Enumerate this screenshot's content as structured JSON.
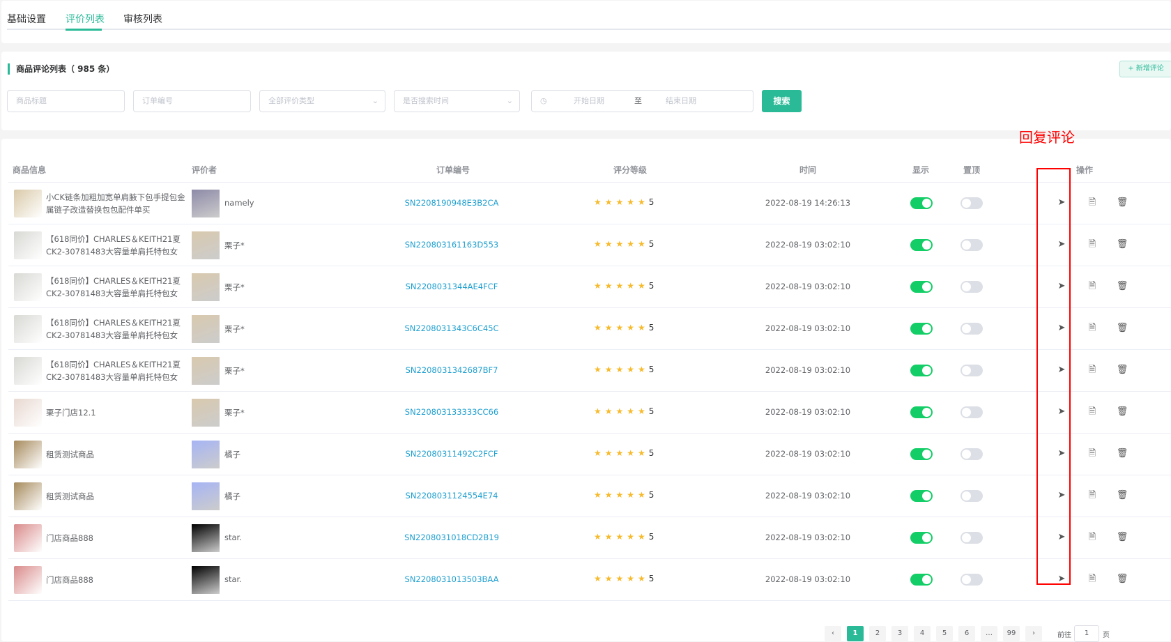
{
  "tabs": [
    "基础设置",
    "评价列表",
    "审核列表"
  ],
  "active_tab": 1,
  "list_title": "商品评论列表（ 985 条）",
  "add_button": "+ 新增评论",
  "filters": {
    "product_title_placeholder": "商品标题",
    "order_no_placeholder": "订单编号",
    "review_type": "全部评价类型",
    "search_time": "是否搜索时间",
    "start_date": "开始日期",
    "date_sep": "至",
    "end_date": "结束日期",
    "search_button": "搜索"
  },
  "annotation": "回复评论",
  "columns": [
    "商品信息",
    "评价者",
    "订单编号",
    "评分等级",
    "时间",
    "显示",
    "置顶",
    "操作"
  ],
  "rows": [
    {
      "product": "小CK链条加粗加宽单肩腋下包手提包金属链子改造替换包包配件单买",
      "reviewer": "namely",
      "order": "SN2208190948E3B2CA",
      "rating": 5,
      "time": "2022-08-19 14:26:13",
      "show": true,
      "top": false,
      "img": "#d9c9a8",
      "av": "#8d8aa8"
    },
    {
      "product": "【618同价】CHARLES＆KEITH21夏CK2-30781483大容量单肩托特包女",
      "reviewer": "栗子*",
      "order": "SN220803161163D553",
      "rating": 5,
      "time": "2022-08-19 03:02:10",
      "show": true,
      "top": false,
      "img": "#d8d8d4",
      "av": "#d9c9ae"
    },
    {
      "product": "【618同价】CHARLES＆KEITH21夏CK2-30781483大容量单肩托特包女",
      "reviewer": "栗子*",
      "order": "SN2208031344AE4FCF",
      "rating": 5,
      "time": "2022-08-19 03:02:10",
      "show": true,
      "top": false,
      "img": "#d8d8d4",
      "av": "#d9c9ae"
    },
    {
      "product": "【618同价】CHARLES＆KEITH21夏CK2-30781483大容量单肩托特包女",
      "reviewer": "栗子*",
      "order": "SN2208031343C6C45C",
      "rating": 5,
      "time": "2022-08-19 03:02:10",
      "show": true,
      "top": false,
      "img": "#d8d8d4",
      "av": "#d9c9ae"
    },
    {
      "product": "【618同价】CHARLES＆KEITH21夏CK2-30781483大容量单肩托特包女",
      "reviewer": "栗子*",
      "order": "SN2208031342687BF7",
      "rating": 5,
      "time": "2022-08-19 03:02:10",
      "show": true,
      "top": false,
      "img": "#d8d8d4",
      "av": "#d9c9ae"
    },
    {
      "product": "栗子门店12.1",
      "reviewer": "栗子*",
      "order": "SN220803133333CC66",
      "rating": 5,
      "time": "2022-08-19 03:02:10",
      "show": true,
      "top": false,
      "img": "#e8d8d0",
      "av": "#d9c9ae"
    },
    {
      "product": "租赁测试商品",
      "reviewer": "橘子",
      "order": "SN22080311492C2FCF",
      "rating": 5,
      "time": "2022-08-19 03:02:10",
      "show": true,
      "top": false,
      "img": "#a68a5c",
      "av": "#a6b4f5"
    },
    {
      "product": "租赁测试商品",
      "reviewer": "橘子",
      "order": "SN2208031124554E74",
      "rating": 5,
      "time": "2022-08-19 03:02:10",
      "show": true,
      "top": false,
      "img": "#a68a5c",
      "av": "#a6b4f5"
    },
    {
      "product": "门店商品888",
      "reviewer": "star.",
      "order": "SN2208031018CD2B19",
      "rating": 5,
      "time": "2022-08-19 03:02:10",
      "show": true,
      "top": false,
      "img": "#d98a8a",
      "av": "#000000"
    },
    {
      "product": "门店商品888",
      "reviewer": "star.",
      "order": "SN2208031013503BAA",
      "rating": 5,
      "time": "2022-08-19 03:02:10",
      "show": true,
      "top": false,
      "img": "#d98a8a",
      "av": "#000000"
    }
  ],
  "pagination": {
    "prev": "‹",
    "pages": [
      "1",
      "2",
      "3",
      "4",
      "5",
      "6",
      "…",
      "99"
    ],
    "current": "1",
    "next": "›",
    "goto_label": "前往",
    "goto_value": "1",
    "page_suffix": "页"
  },
  "colors": {
    "accent": "#2bba98",
    "link": "#1e9fd0",
    "toggle_on": "#13ce66",
    "annotation": "#ff0000",
    "star": "#f7ba2a"
  }
}
